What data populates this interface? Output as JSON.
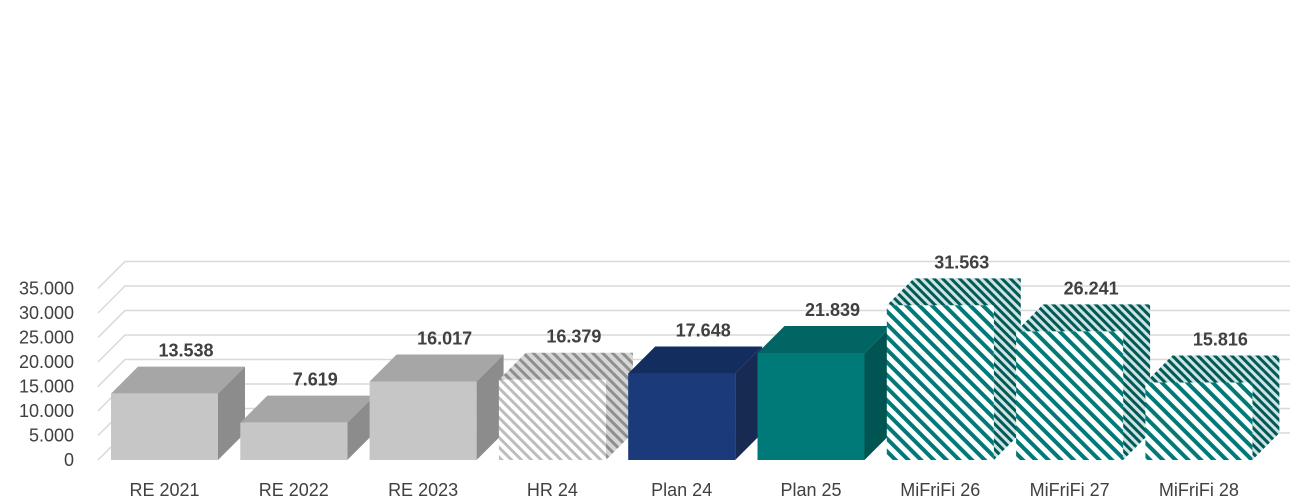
{
  "chart_data": {
    "type": "bar",
    "categories": [
      "RE 2021",
      "RE 2022",
      "RE 2023",
      "HR 24",
      "Plan 24",
      "Plan 25",
      "MiFriFi 26",
      "MiFriFi 27",
      "MiFriFi 28"
    ],
    "values": [
      13538,
      7619,
      16017,
      16379,
      17648,
      21839,
      31563,
      26241,
      15816
    ],
    "value_labels": [
      "13.538",
      "7.619",
      "16.017",
      "16.379",
      "17.648",
      "21.839",
      "31.563",
      "26.241",
      "15.816"
    ],
    "y_ticks": [
      0,
      5000,
      10000,
      15000,
      20000,
      25000,
      30000,
      35000
    ],
    "y_tick_labels": [
      "0",
      "5.000",
      "10.000",
      "15.000",
      "20.000",
      "25.000",
      "30.000",
      "35.000"
    ],
    "ylim": [
      0,
      35000
    ],
    "title": "",
    "xlabel": "",
    "ylabel": "",
    "grid": true,
    "style": "3d-column",
    "bar_styles": [
      "solid",
      "solid",
      "solid",
      "hatch",
      "solid",
      "solid",
      "hatch",
      "hatch",
      "hatch"
    ],
    "bar_colors": [
      "#c6c6c6",
      "#c6c6c6",
      "#c6c6c6",
      "#c6c6c6",
      "#1b3a7a",
      "#007a78",
      "#007a78",
      "#007a78",
      "#007a78"
    ]
  }
}
